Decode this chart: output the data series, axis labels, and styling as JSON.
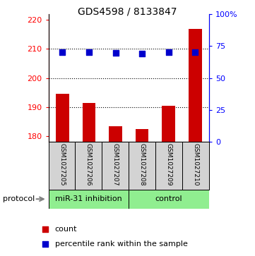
{
  "title": "GDS4598 / 8133847",
  "samples": [
    "GSM1027205",
    "GSM1027206",
    "GSM1027207",
    "GSM1027208",
    "GSM1027209",
    "GSM1027210"
  ],
  "counts": [
    194.5,
    191.5,
    183.5,
    182.5,
    190.5,
    217.0
  ],
  "percentiles": [
    70.5,
    70.5,
    69.5,
    69.0,
    70.0,
    70.5
  ],
  "ylim_left": [
    178,
    222
  ],
  "ylim_right": [
    0,
    100
  ],
  "yticks_left": [
    180,
    190,
    200,
    210,
    220
  ],
  "yticks_right": [
    0,
    25,
    50,
    75,
    100
  ],
  "ytick_labels_right": [
    "0",
    "25",
    "50",
    "75",
    "100%"
  ],
  "grid_lines": [
    190,
    200,
    210
  ],
  "bar_color": "#cc0000",
  "dot_color": "#0000cc",
  "group1_label": "miR-31 inhibition",
  "group2_label": "control",
  "group_color": "#90ee90",
  "sample_box_color": "#d3d3d3",
  "protocol_label": "protocol",
  "legend_count_label": "count",
  "legend_pct_label": "percentile rank within the sample",
  "bar_width": 0.5,
  "dot_size": 30,
  "title_fontsize": 10,
  "axis_fontsize": 8,
  "label_fontsize": 8,
  "sample_fontsize": 6.5
}
